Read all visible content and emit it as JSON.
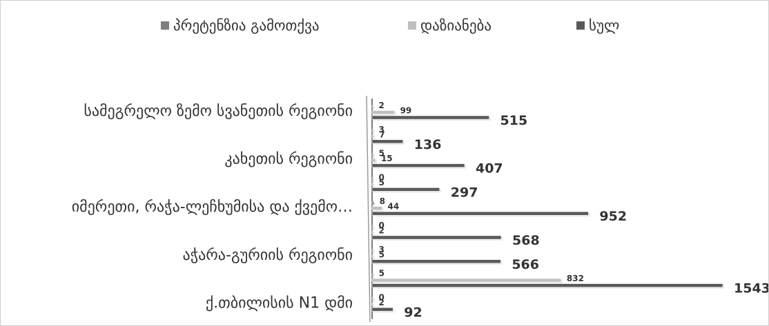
{
  "chart_data": {
    "type": "bar",
    "orientation": "horizontal",
    "title": "",
    "legend_position": "top",
    "grid": false,
    "series": [
      {
        "name": "პრეტენზია გამოთქვა",
        "color": "#7f7f7f",
        "values": [
          2,
          3,
          5,
          0,
          8,
          0,
          3,
          5,
          0
        ]
      },
      {
        "name": "დაზიანება",
        "color": "#bfbfbf",
        "values": [
          99,
          7,
          15,
          5,
          44,
          2,
          5,
          832,
          2
        ]
      },
      {
        "name": "სულ",
        "color": "#595959",
        "values": [
          515,
          136,
          407,
          297,
          952,
          568,
          566,
          1543,
          92
        ]
      }
    ],
    "categories": [
      "სამეგრელო ზემო სვანეთის რეგიონი",
      "",
      "კახეთის რეგიონი",
      "",
      "იმერეთი, რაჭა-ლეჩხუმისა და ქვემო…",
      "",
      "აჭარა-გურიის რეგიონი",
      "",
      "ქ.თბილისის N1 დმი"
    ]
  }
}
